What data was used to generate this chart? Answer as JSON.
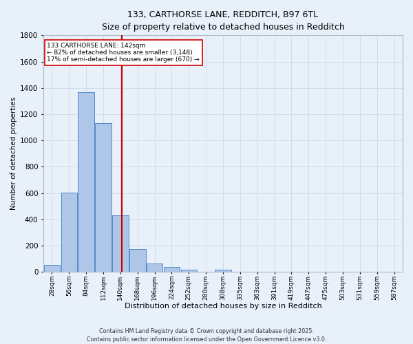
{
  "title_line1": "133, CARTHORSE LANE, REDDITCH, B97 6TL",
  "title_line2": "Size of property relative to detached houses in Redditch",
  "xlabel": "Distribution of detached houses by size in Redditch",
  "ylabel": "Number of detached properties",
  "bar_labels": [
    "28sqm",
    "56sqm",
    "84sqm",
    "112sqm",
    "140sqm",
    "168sqm",
    "196sqm",
    "224sqm",
    "252sqm",
    "280sqm",
    "308sqm",
    "335sqm",
    "363sqm",
    "391sqm",
    "419sqm",
    "447sqm",
    "475sqm",
    "503sqm",
    "531sqm",
    "559sqm",
    "587sqm"
  ],
  "bar_values": [
    55,
    605,
    1365,
    1130,
    430,
    175,
    65,
    40,
    15,
    0,
    15,
    0,
    0,
    0,
    0,
    0,
    0,
    0,
    0,
    0,
    0
  ],
  "bar_color": "#aec6e8",
  "bar_edge_color": "#5588cc",
  "background_color": "#e8f0fa",
  "grid_color": "#d0d8e8",
  "vline_color": "#cc0000",
  "annotation_text": "133 CARTHORSE LANE: 142sqm\n← 82% of detached houses are smaller (3,148)\n17% of semi-detached houses are larger (670) →",
  "annotation_box_color": "#ffffff",
  "annotation_box_edge": "#cc0000",
  "ylim": [
    0,
    1800
  ],
  "yticks": [
    0,
    200,
    400,
    600,
    800,
    1000,
    1200,
    1400,
    1600,
    1800
  ],
  "footer_line1": "Contains HM Land Registry data © Crown copyright and database right 2025.",
  "footer_line2": "Contains public sector information licensed under the Open Government Licence v3.0."
}
